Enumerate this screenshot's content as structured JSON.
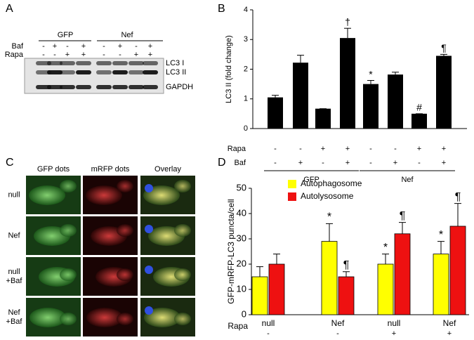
{
  "panel_a": {
    "label": "A",
    "rows": [
      "Baf",
      "Rapa"
    ],
    "groups": [
      "GFP",
      "Nef"
    ],
    "baf": [
      "-",
      "+",
      "-",
      "+",
      "-",
      "+",
      "-",
      "+"
    ],
    "rapa": [
      "-",
      "-",
      "+",
      "+",
      "-",
      "-",
      "+",
      "+"
    ],
    "bands": [
      "LC3 I",
      "LC3 II",
      "GAPDH"
    ]
  },
  "chart_data": [
    {
      "type": "bar",
      "panel_label": "B",
      "ylabel": "LC3 II (fold change)",
      "color": "#000000",
      "values": [
        1.05,
        2.22,
        0.67,
        3.05,
        1.5,
        1.82,
        0.5,
        2.45
      ],
      "errors": [
        0.07,
        0.25,
        0,
        0.33,
        0.12,
        0.08,
        0,
        0.05
      ],
      "annotations": [
        null,
        null,
        null,
        "†",
        "*",
        null,
        "#",
        "¶"
      ],
      "row_labels": [
        "Rapa",
        "Baf"
      ],
      "rapa": [
        "-",
        "-",
        "+",
        "+",
        "-",
        "-",
        "+",
        "+"
      ],
      "baf": [
        "-",
        "+",
        "-",
        "+",
        "-",
        "+",
        "-",
        "+"
      ],
      "groups": [
        "GFP",
        "Nef"
      ],
      "ylim": [
        0,
        4
      ],
      "yticks": [
        0,
        1,
        2,
        3,
        4
      ]
    },
    {
      "type": "grouped_bar",
      "panel_label": "D",
      "ylabel": "GFP-mRFP-LC3 puncta/cell",
      "categories": [
        "null",
        "Nef",
        "null",
        "Nef"
      ],
      "row_label": "Rapa",
      "rapa": [
        "-",
        "-",
        "+",
        "+"
      ],
      "series": [
        {
          "name": "Autophagosome",
          "color": "#ffff00",
          "values": [
            15,
            29,
            20,
            24
          ],
          "errors": [
            4,
            7,
            4,
            5
          ],
          "annotations": [
            null,
            "*",
            "*",
            "*"
          ]
        },
        {
          "name": "Autolysosome",
          "color": "#ee1111",
          "values": [
            20,
            15,
            32,
            35
          ],
          "errors": [
            4,
            2,
            4.5,
            9
          ],
          "annotations": [
            null,
            "¶",
            "¶",
            "¶"
          ]
        }
      ],
      "ylim": [
        0,
        50
      ],
      "yticks": [
        0,
        10,
        20,
        30,
        40,
        50
      ]
    }
  ],
  "panel_c": {
    "label": "C",
    "columns": [
      "GFP dots",
      "mRFP dots",
      "Overlay"
    ],
    "rows": [
      [
        "null"
      ],
      [
        "Nef"
      ],
      [
        "null",
        "+Baf"
      ],
      [
        "Nef",
        "+Baf"
      ]
    ]
  }
}
